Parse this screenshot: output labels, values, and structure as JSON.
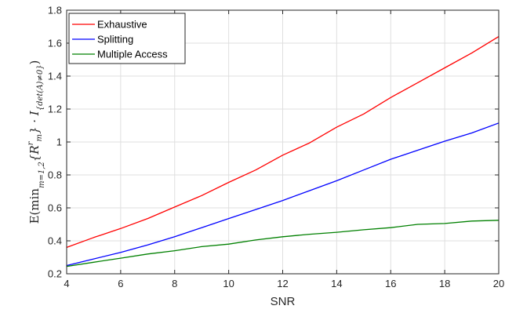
{
  "chart_data": {
    "type": "line",
    "xlabel": "SNR",
    "ylabel": {
      "pre": "E(",
      "min_op": "min",
      "subscript": "m=1,2",
      "set": "{R",
      "set_sup": "r",
      "set_sub": "m",
      "set_close": "} · I",
      "indicator_sub": "{det(A)≠0}",
      "post": ")"
    },
    "xlim": [
      4,
      20
    ],
    "ylim": [
      0.2,
      1.8
    ],
    "xticks": [
      4,
      6,
      8,
      10,
      12,
      14,
      16,
      18,
      20
    ],
    "yticks": [
      0.2,
      0.4,
      0.6,
      0.8,
      1,
      1.2,
      1.4,
      1.6,
      1.8
    ],
    "grid": true,
    "legend_position": "top-left",
    "x": [
      4,
      5,
      6,
      7,
      8,
      9,
      10,
      11,
      12,
      13,
      14,
      15,
      16,
      17,
      18,
      19,
      20
    ],
    "series": [
      {
        "name": "Exhaustive",
        "color": "#ff0000",
        "values": [
          0.36,
          0.42,
          0.475,
          0.535,
          0.605,
          0.675,
          0.755,
          0.83,
          0.92,
          0.995,
          1.09,
          1.17,
          1.27,
          1.36,
          1.45,
          1.54,
          1.64
        ]
      },
      {
        "name": "Splitting",
        "color": "#0000ff",
        "values": [
          0.25,
          0.29,
          0.33,
          0.375,
          0.425,
          0.48,
          0.535,
          0.59,
          0.645,
          0.705,
          0.765,
          0.83,
          0.895,
          0.95,
          1.005,
          1.055,
          1.115
        ]
      },
      {
        "name": "Multiple Access",
        "color": "#008000",
        "values": [
          0.245,
          0.27,
          0.295,
          0.32,
          0.34,
          0.365,
          0.38,
          0.405,
          0.425,
          0.44,
          0.452,
          0.467,
          0.48,
          0.5,
          0.505,
          0.52,
          0.525
        ]
      }
    ]
  }
}
